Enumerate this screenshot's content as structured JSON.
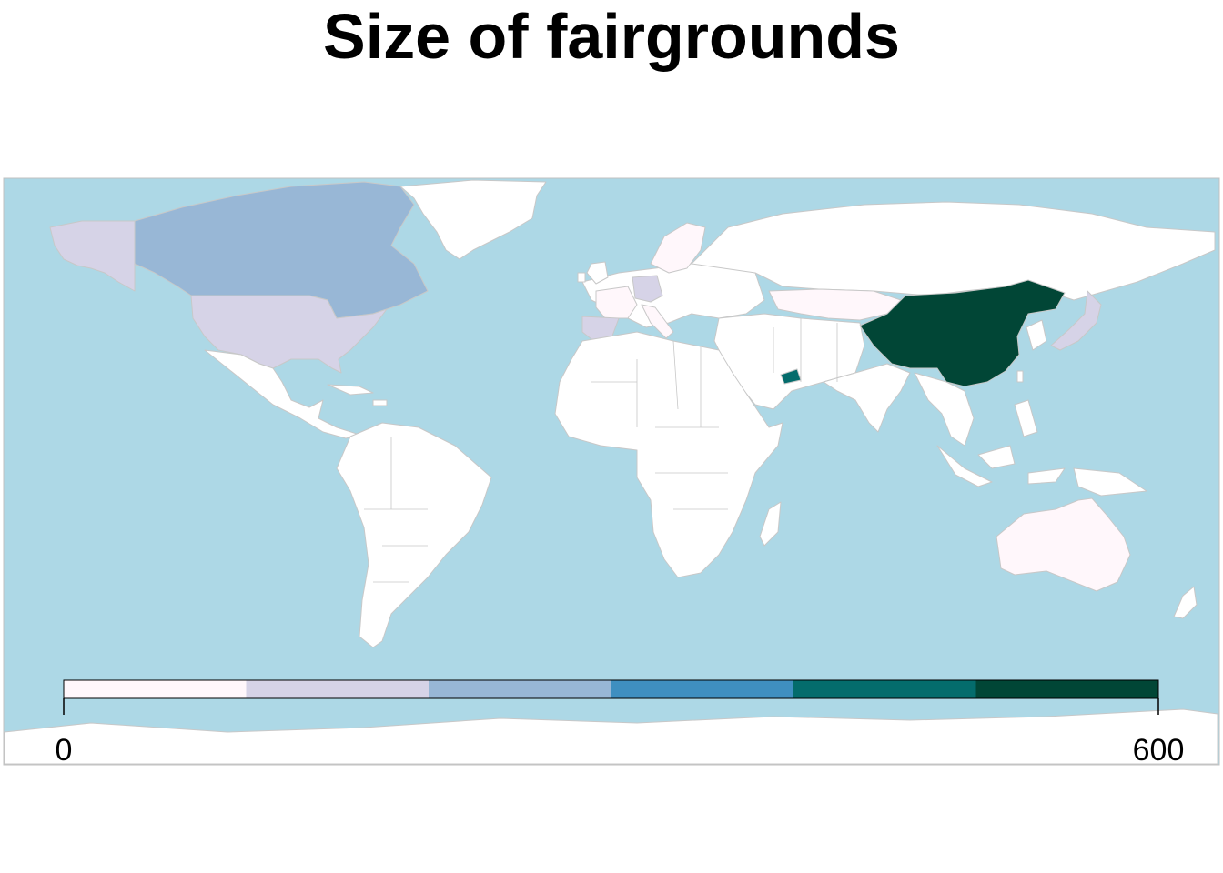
{
  "title": "Size of fairgrounds",
  "legend": {
    "min_label": "0",
    "max_label": "600",
    "min": 0,
    "max": 600,
    "colors": [
      "#fff7fb",
      "#d6d3e7",
      "#98b7d6",
      "#3f8fc0",
      "#046c6c",
      "#014636"
    ]
  },
  "colors": {
    "ocean": "#add8e6",
    "land_no_data": "#ffffff",
    "border": "#c8c8c8"
  },
  "chart_data": {
    "type": "choropleth",
    "title": "Size of fairgrounds",
    "scale": {
      "min": 0,
      "max": 600,
      "bins": 6
    },
    "regions": [
      {
        "name": "China",
        "bin": 6
      },
      {
        "name": "United Arab Emirates",
        "bin": 5
      },
      {
        "name": "Canada",
        "bin": 3
      },
      {
        "name": "United States",
        "bin": 2
      },
      {
        "name": "Germany",
        "bin": 2
      },
      {
        "name": "Spain",
        "bin": 2
      },
      {
        "name": "Japan",
        "bin": 2
      },
      {
        "name": "France",
        "bin": 1
      },
      {
        "name": "Italy",
        "bin": 1
      },
      {
        "name": "Sweden",
        "bin": 1
      },
      {
        "name": "Kazakhstan",
        "bin": 1
      },
      {
        "name": "Australia",
        "bin": 1
      }
    ]
  }
}
